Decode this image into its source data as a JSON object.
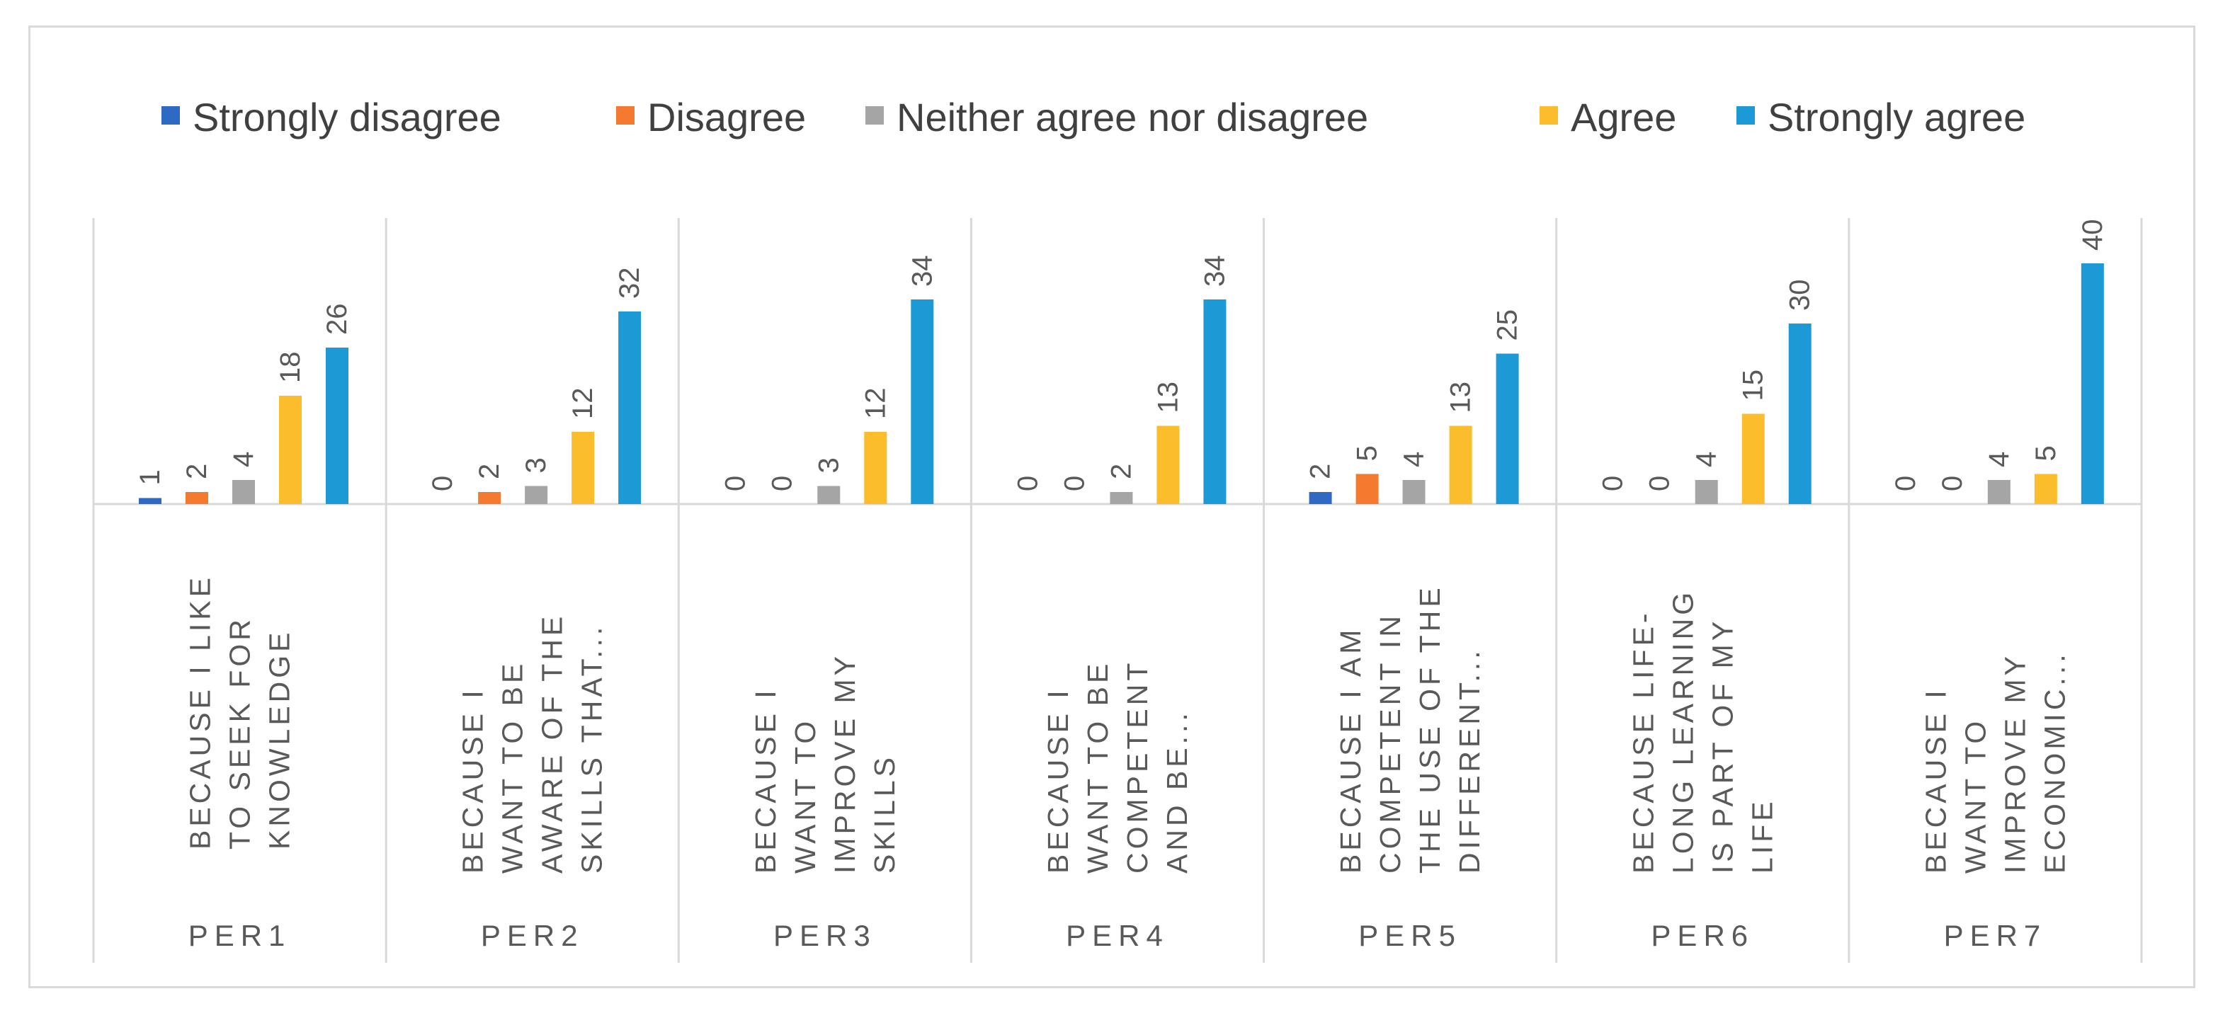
{
  "chart_data": {
    "type": "bar",
    "title": "",
    "xlabel": "",
    "ylabel": "",
    "ylim": [
      0,
      40
    ],
    "grid": false,
    "legend_position": "top",
    "groups": [
      "PER1",
      "PER2",
      "PER3",
      "PER4",
      "PER5",
      "PER6",
      "PER7"
    ],
    "category_labels": [
      [
        "BECAUSE I LIKE",
        "TO SEEK FOR",
        "KNOWLEDGE"
      ],
      [
        "BECAUSE I",
        "WANT TO BE",
        "AWARE OF THE",
        "SKILLS THAT..."
      ],
      [
        "BECAUSE I",
        "WANT TO",
        "IMPROVE MY",
        "SKILLS"
      ],
      [
        "BECAUSE I",
        "WANT TO BE",
        "COMPETENT",
        "AND BE..."
      ],
      [
        "BECAUSE I AM",
        "COMPETENT IN",
        "THE USE OF THE",
        "DIFFERENT..."
      ],
      [
        "BECAUSE LIFE-",
        "LONG LEARNING",
        "IS PART OF MY",
        "LIFE"
      ],
      [
        "BECAUSE I",
        "WANT TO",
        "IMPROVE MY",
        "ECONOMIC..."
      ]
    ],
    "series": [
      {
        "name": "Strongly disagree",
        "color": "#2e6ac3",
        "values": [
          1,
          0,
          0,
          0,
          2,
          0,
          0
        ]
      },
      {
        "name": "Disagree",
        "color": "#f47a2f",
        "values": [
          2,
          2,
          0,
          0,
          5,
          0,
          0
        ]
      },
      {
        "name": "Neither agree nor disagree",
        "color": "#a5a5a5",
        "values": [
          4,
          3,
          3,
          2,
          4,
          4,
          4
        ]
      },
      {
        "name": "Agree",
        "color": "#fbbd2c",
        "values": [
          18,
          12,
          12,
          13,
          13,
          15,
          5
        ]
      },
      {
        "name": "Strongly agree",
        "color": "#1c9ad6",
        "values": [
          26,
          32,
          34,
          34,
          25,
          30,
          40
        ]
      }
    ]
  }
}
